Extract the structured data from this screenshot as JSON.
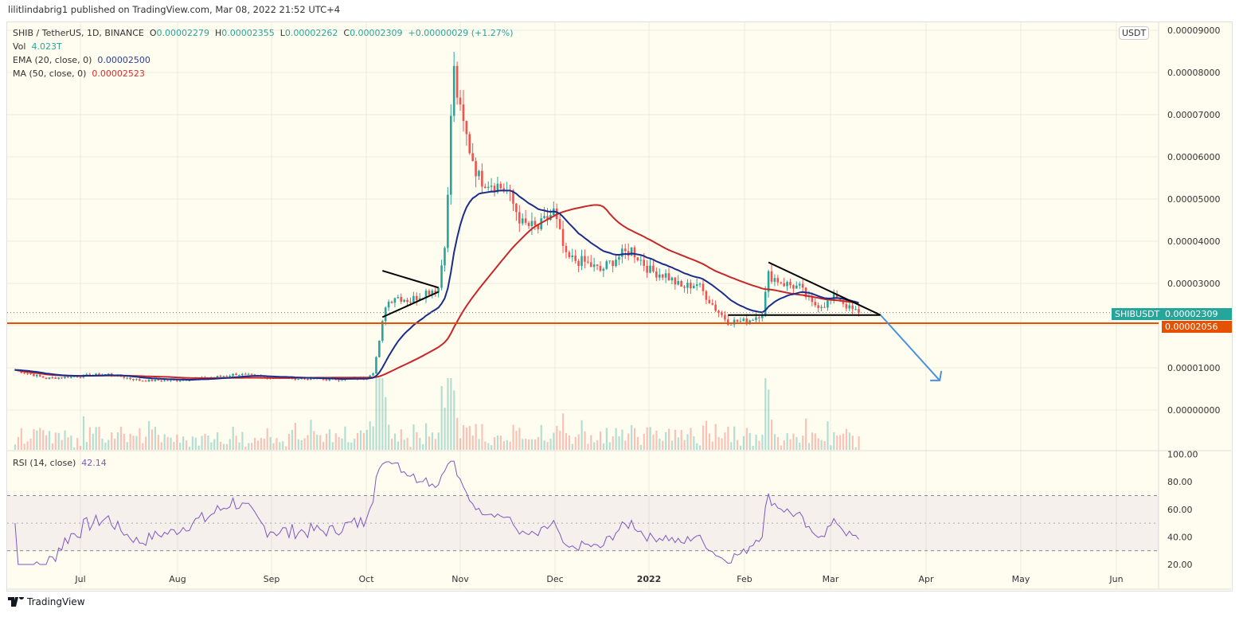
{
  "publisher_line": "lilitlindabrig1 published on TradingView.com, Mar 08, 2022 21:52 UTC+4",
  "legend": {
    "symbol": "SHIB / TetherUS, 1D, BINANCE",
    "o_label": "O",
    "o": "0.00002279",
    "h_label": "H",
    "h": "0.00002355",
    "l_label": "L",
    "l": "0.00002262",
    "c_label": "C",
    "c": "0.00002309",
    "change": "+0.00000029 (+1.27%)",
    "vol_label": "Vol",
    "vol": "4.023T",
    "ema_label": "EMA (20, close, 0)",
    "ema": "0.00002500",
    "ma_label": "MA (50, close, 0)",
    "ma": "0.00002523",
    "rsi_label": "RSI (14, close)",
    "rsi": "42.14"
  },
  "currency_button": "USDT",
  "symbol_tag": "SHIBUSDT",
  "last_price_tag": "0.00002309",
  "level_tag": "0.00002056",
  "footer_brand": "TradingView",
  "colors": {
    "up": "#26a69a",
    "down": "#ef5350",
    "ema": "#1a2d8c",
    "ma": "#c62828",
    "rsi": "#7e57c2",
    "level": "#e65100",
    "arrow": "#4a90e2"
  },
  "chart_data": {
    "type": "candlestick",
    "price_unit": "USDT",
    "y_ticks": [
      "0.00000000",
      "0.00001000",
      "0.00002000",
      "0.00003000",
      "0.00004000",
      "0.00005000",
      "0.00006000",
      "0.00007000",
      "0.00008000",
      "0.00009000"
    ],
    "x_ticks": [
      "Jul",
      "Aug",
      "Sep",
      "Oct",
      "Nov",
      "Dec",
      "2022",
      "Feb",
      "Mar",
      "Apr",
      "May",
      "Jun"
    ],
    "close_points_e5": [
      [
        "2021-06-10",
        0.95
      ],
      [
        "2021-06-20",
        0.75
      ],
      [
        "2021-06-30",
        0.8
      ],
      [
        "2021-07-10",
        0.85
      ],
      [
        "2021-07-20",
        0.7
      ],
      [
        "2021-07-30",
        0.7
      ],
      [
        "2021-08-10",
        0.75
      ],
      [
        "2021-08-20",
        0.85
      ],
      [
        "2021-08-30",
        0.78
      ],
      [
        "2021-09-07",
        0.75
      ],
      [
        "2021-09-20",
        0.72
      ],
      [
        "2021-09-30",
        0.75
      ],
      [
        "2021-10-03",
        0.9
      ],
      [
        "2021-10-05",
        1.6
      ],
      [
        "2021-10-07",
        2.5
      ],
      [
        "2021-10-10",
        2.7
      ],
      [
        "2021-10-15",
        2.6
      ],
      [
        "2021-10-20",
        2.8
      ],
      [
        "2021-10-24",
        2.9
      ],
      [
        "2021-10-26",
        4.0
      ],
      [
        "2021-10-27",
        5.0
      ],
      [
        "2021-10-28",
        7.0
      ],
      [
        "2021-10-29",
        8.0
      ],
      [
        "2021-10-31",
        7.0
      ],
      [
        "2021-11-03",
        6.2
      ],
      [
        "2021-11-06",
        5.5
      ],
      [
        "2021-11-10",
        5.4
      ],
      [
        "2021-11-15",
        5.2
      ],
      [
        "2021-11-20",
        4.4
      ],
      [
        "2021-11-25",
        4.3
      ],
      [
        "2021-11-30",
        4.7
      ],
      [
        "2021-12-04",
        3.6
      ],
      [
        "2021-12-10",
        3.5
      ],
      [
        "2021-12-15",
        3.3
      ],
      [
        "2021-12-20",
        3.6
      ],
      [
        "2021-12-25",
        3.8
      ],
      [
        "2021-12-31",
        3.3
      ],
      [
        "2022-01-05",
        3.2
      ],
      [
        "2022-01-10",
        2.9
      ],
      [
        "2022-01-15",
        3.0
      ],
      [
        "2022-01-21",
        2.4
      ],
      [
        "2022-01-25",
        2.1
      ],
      [
        "2022-01-31",
        2.1
      ],
      [
        "2022-02-05",
        2.3
      ],
      [
        "2022-02-07",
        3.2
      ],
      [
        "2022-02-12",
        3.0
      ],
      [
        "2022-02-17",
        2.9
      ],
      [
        "2022-02-21",
        2.5
      ],
      [
        "2022-02-25",
        2.5
      ],
      [
        "2022-03-01",
        2.7
      ],
      [
        "2022-03-05",
        2.4
      ],
      [
        "2022-03-08",
        2.309
      ]
    ],
    "horizontal_level": 2.056e-05,
    "drawings": [
      {
        "kind": "trendline",
        "from": [
          "2021-10-06",
          3.3
        ],
        "to": [
          "2021-10-24",
          2.9
        ]
      },
      {
        "kind": "trendline",
        "from": [
          "2021-10-06",
          2.2
        ],
        "to": [
          "2021-10-24",
          2.8
        ]
      },
      {
        "kind": "trendline",
        "from": [
          "2022-02-07",
          3.5
        ],
        "to": [
          "2022-03-15",
          2.25
        ]
      },
      {
        "kind": "trendline",
        "from": [
          "2022-01-25",
          2.25
        ],
        "to": [
          "2022-03-15",
          2.25
        ]
      },
      {
        "kind": "arrow",
        "from": [
          "2022-03-15",
          2.25
        ],
        "to": [
          "2022-04-03",
          0.7
        ]
      }
    ],
    "rsi_ticks": [
      "20.00",
      "40.00",
      "60.00",
      "80.00",
      "100.00"
    ],
    "rsi_bands": [
      30,
      70
    ]
  }
}
